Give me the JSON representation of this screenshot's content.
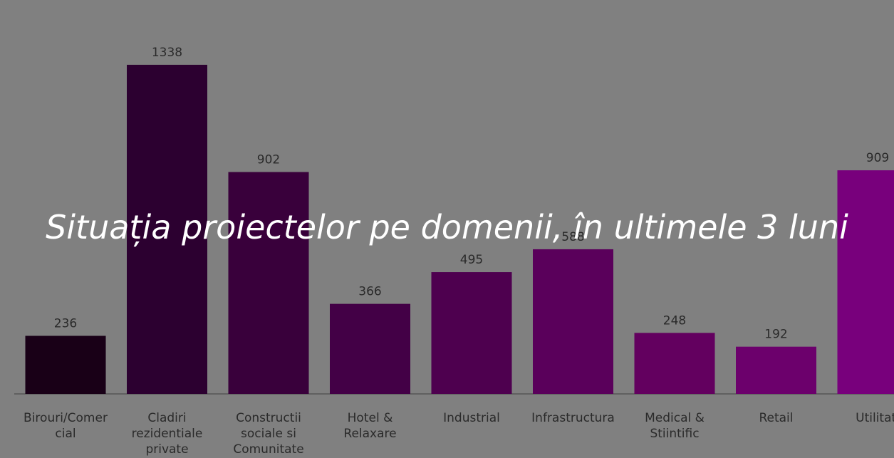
{
  "chart_data": {
    "type": "bar",
    "title": "Situația proiectelor pe domenii, în ultimele 3 luni",
    "categories": [
      "Birouri/Comer\ncial",
      "Cladiri\nrezidentiale\nprivate",
      "Constructii\nsociale si\nComunitate",
      "Hotel &\nRelaxare",
      "Industrial",
      "Infrastructura",
      "Medical &\nStiintific",
      "Retail",
      "Utilitati"
    ],
    "values": [
      236,
      1338,
      902,
      366,
      495,
      588,
      248,
      192,
      909
    ],
    "colors": [
      "#190017",
      "#2c0030",
      "#39003b",
      "#430046",
      "#4e004f",
      "#5a005b",
      "#63005f",
      "#6c006c",
      "#78007c"
    ],
    "ylim": [
      0,
      1500
    ]
  }
}
